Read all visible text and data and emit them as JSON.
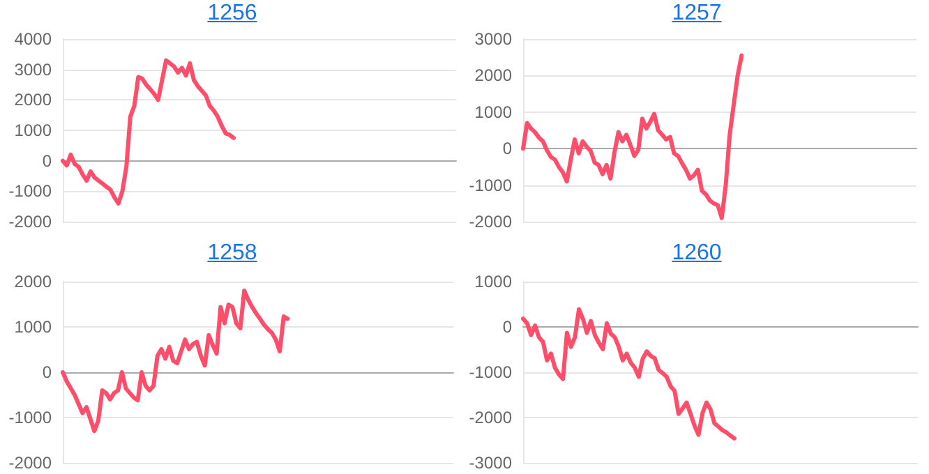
{
  "chart_data": [
    {
      "type": "line",
      "title": "1256",
      "color": "#ff4d6a",
      "ylim": [
        -2000,
        4000
      ],
      "yticks": [
        -2000,
        -1000,
        0,
        1000,
        2000,
        3000,
        4000
      ],
      "grid": "y",
      "tick_labels": "y",
      "categories": [
        null,
        null,
        null,
        null,
        null,
        null,
        null,
        null,
        null,
        null,
        null,
        null,
        null,
        null,
        null,
        null,
        null,
        null,
        null,
        null,
        null,
        null,
        null,
        null,
        null,
        null,
        null,
        null,
        null,
        null,
        null,
        null,
        null,
        null,
        null,
        null,
        null,
        null,
        null,
        null,
        null,
        null,
        null,
        null,
        null,
        null,
        null,
        null,
        null,
        null,
        null,
        null,
        null,
        null,
        null,
        null,
        null,
        null,
        null,
        null,
        null,
        null,
        null,
        null,
        null,
        null,
        null,
        null,
        null,
        null,
        null,
        null,
        null,
        null,
        null,
        null,
        null,
        null,
        null,
        null,
        null,
        null,
        null,
        null,
        null,
        null,
        null,
        null,
        null,
        null,
        null,
        null,
        null,
        null,
        null,
        null,
        null,
        null,
        null,
        null
      ],
      "values": [
        0,
        -150,
        200,
        -100,
        -200,
        -450,
        -650,
        -350,
        -550,
        -650,
        -750,
        -850,
        -950,
        -1200,
        -1400,
        -1000,
        -200,
        1450,
        1800,
        2750,
        2700,
        2500,
        2350,
        2200,
        2000,
        2650,
        3300,
        3200,
        3100,
        2900,
        3050,
        2800,
        3200,
        2650,
        2450,
        2300,
        2150,
        1800,
        1650,
        1450,
        1150,
        900,
        850,
        750,
        null,
        null,
        null,
        null,
        null,
        null,
        null,
        null,
        null,
        null,
        null,
        null,
        null,
        null,
        null,
        null,
        null,
        null,
        null,
        null,
        null,
        null,
        null,
        null,
        null,
        null,
        null,
        null,
        null,
        null,
        null,
        null,
        null,
        null,
        null,
        null,
        null,
        null,
        null,
        null,
        null,
        null,
        null,
        null,
        null,
        null,
        null,
        null,
        null,
        null,
        null,
        null,
        null,
        null,
        null,
        null
      ]
    },
    {
      "type": "line",
      "title": "1257",
      "color": "#ff4d6a",
      "ylim": [
        -2000,
        3000
      ],
      "yticks": [
        -2000,
        -1000,
        0,
        1000,
        2000,
        3000
      ],
      "grid": "y",
      "tick_labels": "y",
      "categories": [
        null,
        null,
        null,
        null,
        null,
        null,
        null,
        null,
        null,
        null,
        null,
        null,
        null,
        null,
        null,
        null,
        null,
        null,
        null,
        null,
        null,
        null,
        null,
        null,
        null,
        null,
        null,
        null,
        null,
        null,
        null,
        null,
        null,
        null,
        null,
        null,
        null,
        null,
        null,
        null,
        null,
        null,
        null,
        null,
        null,
        null,
        null,
        null,
        null,
        null,
        null,
        null,
        null,
        null,
        null,
        null,
        null,
        null,
        null,
        null,
        null,
        null,
        null,
        null,
        null,
        null,
        null,
        null,
        null,
        null,
        null,
        null,
        null,
        null,
        null,
        null,
        null,
        null,
        null,
        null,
        null,
        null,
        null,
        null,
        null,
        null,
        null,
        null,
        null,
        null,
        null,
        null,
        null,
        null,
        null,
        null,
        null,
        null,
        null,
        null
      ],
      "values": [
        0,
        700,
        550,
        450,
        300,
        200,
        -50,
        -230,
        -300,
        -500,
        -650,
        -900,
        -300,
        250,
        -130,
        200,
        50,
        -60,
        -380,
        -450,
        -700,
        -450,
        -820,
        -100,
        450,
        200,
        380,
        100,
        -200,
        -30,
        820,
        550,
        730,
        950,
        500,
        380,
        250,
        320,
        -130,
        -200,
        -400,
        -580,
        -820,
        -730,
        -580,
        -1150,
        -1250,
        -1420,
        -1500,
        -1550,
        -1900,
        -1000,
        380,
        1200,
        2000,
        2550,
        null,
        null,
        null,
        null,
        null,
        null,
        null,
        null,
        null,
        null,
        null,
        null,
        null,
        null,
        null,
        null,
        null,
        null,
        null,
        null,
        null,
        null,
        null,
        null,
        null,
        null,
        null,
        null,
        null,
        null,
        null,
        null,
        null,
        null,
        null,
        null,
        null,
        null,
        null,
        null,
        null,
        null,
        null,
        null
      ]
    },
    {
      "type": "line",
      "title": "1258",
      "color": "#ff4d6a",
      "ylim": [
        -2000,
        2000
      ],
      "yticks": [
        -2000,
        -1000,
        0,
        1000,
        2000
      ],
      "grid": "y",
      "tick_labels": "y",
      "categories": [
        null,
        null,
        null,
        null,
        null,
        null,
        null,
        null,
        null,
        null,
        null,
        null,
        null,
        null,
        null,
        null,
        null,
        null,
        null,
        null,
        null,
        null,
        null,
        null,
        null,
        null,
        null,
        null,
        null,
        null,
        null,
        null,
        null,
        null,
        null,
        null,
        null,
        null,
        null,
        null,
        null,
        null,
        null,
        null,
        null,
        null,
        null,
        null,
        null,
        null,
        null,
        null,
        null,
        null,
        null,
        null,
        null,
        null,
        null,
        null,
        null,
        null,
        null,
        null,
        null,
        null,
        null,
        null,
        null,
        null,
        null,
        null,
        null,
        null,
        null,
        null,
        null,
        null,
        null,
        null,
        null,
        null,
        null,
        null,
        null,
        null,
        null,
        null,
        null,
        null,
        null,
        null,
        null,
        null,
        null,
        null,
        null,
        null,
        null,
        null
      ],
      "values": [
        0,
        -200,
        -350,
        -500,
        -700,
        -900,
        -770,
        -1030,
        -1300,
        -1070,
        -400,
        -460,
        -600,
        -460,
        -400,
        0,
        -360,
        -460,
        -560,
        -620,
        0,
        -300,
        -400,
        -300,
        360,
        510,
        300,
        560,
        250,
        200,
        460,
        720,
        510,
        620,
        670,
        360,
        150,
        820,
        600,
        410,
        1440,
        1080,
        1490,
        1440,
        1080,
        970,
        1800,
        1600,
        1440,
        1300,
        1180,
        1050,
        950,
        870,
        720,
        460,
        1230,
        1180,
        null,
        null,
        null,
        null,
        null,
        null,
        null,
        null,
        null,
        null,
        null,
        null,
        null,
        null,
        null,
        null,
        null,
        null,
        null,
        null,
        null,
        null,
        null,
        null,
        null,
        null,
        null,
        null,
        null,
        null,
        null,
        null,
        null,
        null,
        null,
        null,
        null,
        null,
        null,
        null,
        null,
        null
      ]
    },
    {
      "type": "line",
      "title": "1260",
      "color": "#ff4d6a",
      "ylim": [
        -3000,
        1000
      ],
      "yticks": [
        -3000,
        -2000,
        -1000,
        0,
        1000
      ],
      "grid": "y",
      "tick_labels": "y",
      "categories": [
        null,
        null,
        null,
        null,
        null,
        null,
        null,
        null,
        null,
        null,
        null,
        null,
        null,
        null,
        null,
        null,
        null,
        null,
        null,
        null,
        null,
        null,
        null,
        null,
        null,
        null,
        null,
        null,
        null,
        null,
        null,
        null,
        null,
        null,
        null,
        null,
        null,
        null,
        null,
        null,
        null,
        null,
        null,
        null,
        null,
        null,
        null,
        null,
        null,
        null,
        null,
        null,
        null,
        null,
        null,
        null,
        null,
        null,
        null,
        null,
        null,
        null,
        null,
        null,
        null,
        null,
        null,
        null,
        null,
        null,
        null,
        null,
        null,
        null,
        null,
        null,
        null,
        null,
        null,
        null,
        null,
        null,
        null,
        null,
        null,
        null,
        null,
        null,
        null,
        null,
        null,
        null,
        null,
        null,
        null,
        null,
        null,
        null,
        null,
        null
      ],
      "values": [
        180,
        80,
        -180,
        30,
        -230,
        -330,
        -740,
        -590,
        -900,
        -1050,
        -1150,
        -130,
        -440,
        -230,
        390,
        180,
        -130,
        130,
        -180,
        -350,
        -490,
        80,
        -150,
        -230,
        -440,
        -740,
        -590,
        -790,
        -900,
        -1100,
        -700,
        -540,
        -640,
        -690,
        -950,
        -1020,
        -1100,
        -1310,
        -1410,
        -1920,
        -1800,
        -1670,
        -1920,
        -2180,
        -2380,
        -1900,
        -1670,
        -1820,
        -2130,
        -2200,
        -2280,
        -2330,
        -2400,
        -2460,
        null,
        null,
        null,
        null,
        null,
        null,
        null,
        null,
        null,
        null,
        null,
        null,
        null,
        null,
        null,
        null,
        null,
        null,
        null,
        null,
        null,
        null,
        null,
        null,
        null,
        null,
        null,
        null,
        null,
        null,
        null,
        null,
        null,
        null,
        null,
        null,
        null,
        null,
        null,
        null,
        null,
        null,
        null,
        null,
        null,
        null
      ]
    }
  ]
}
